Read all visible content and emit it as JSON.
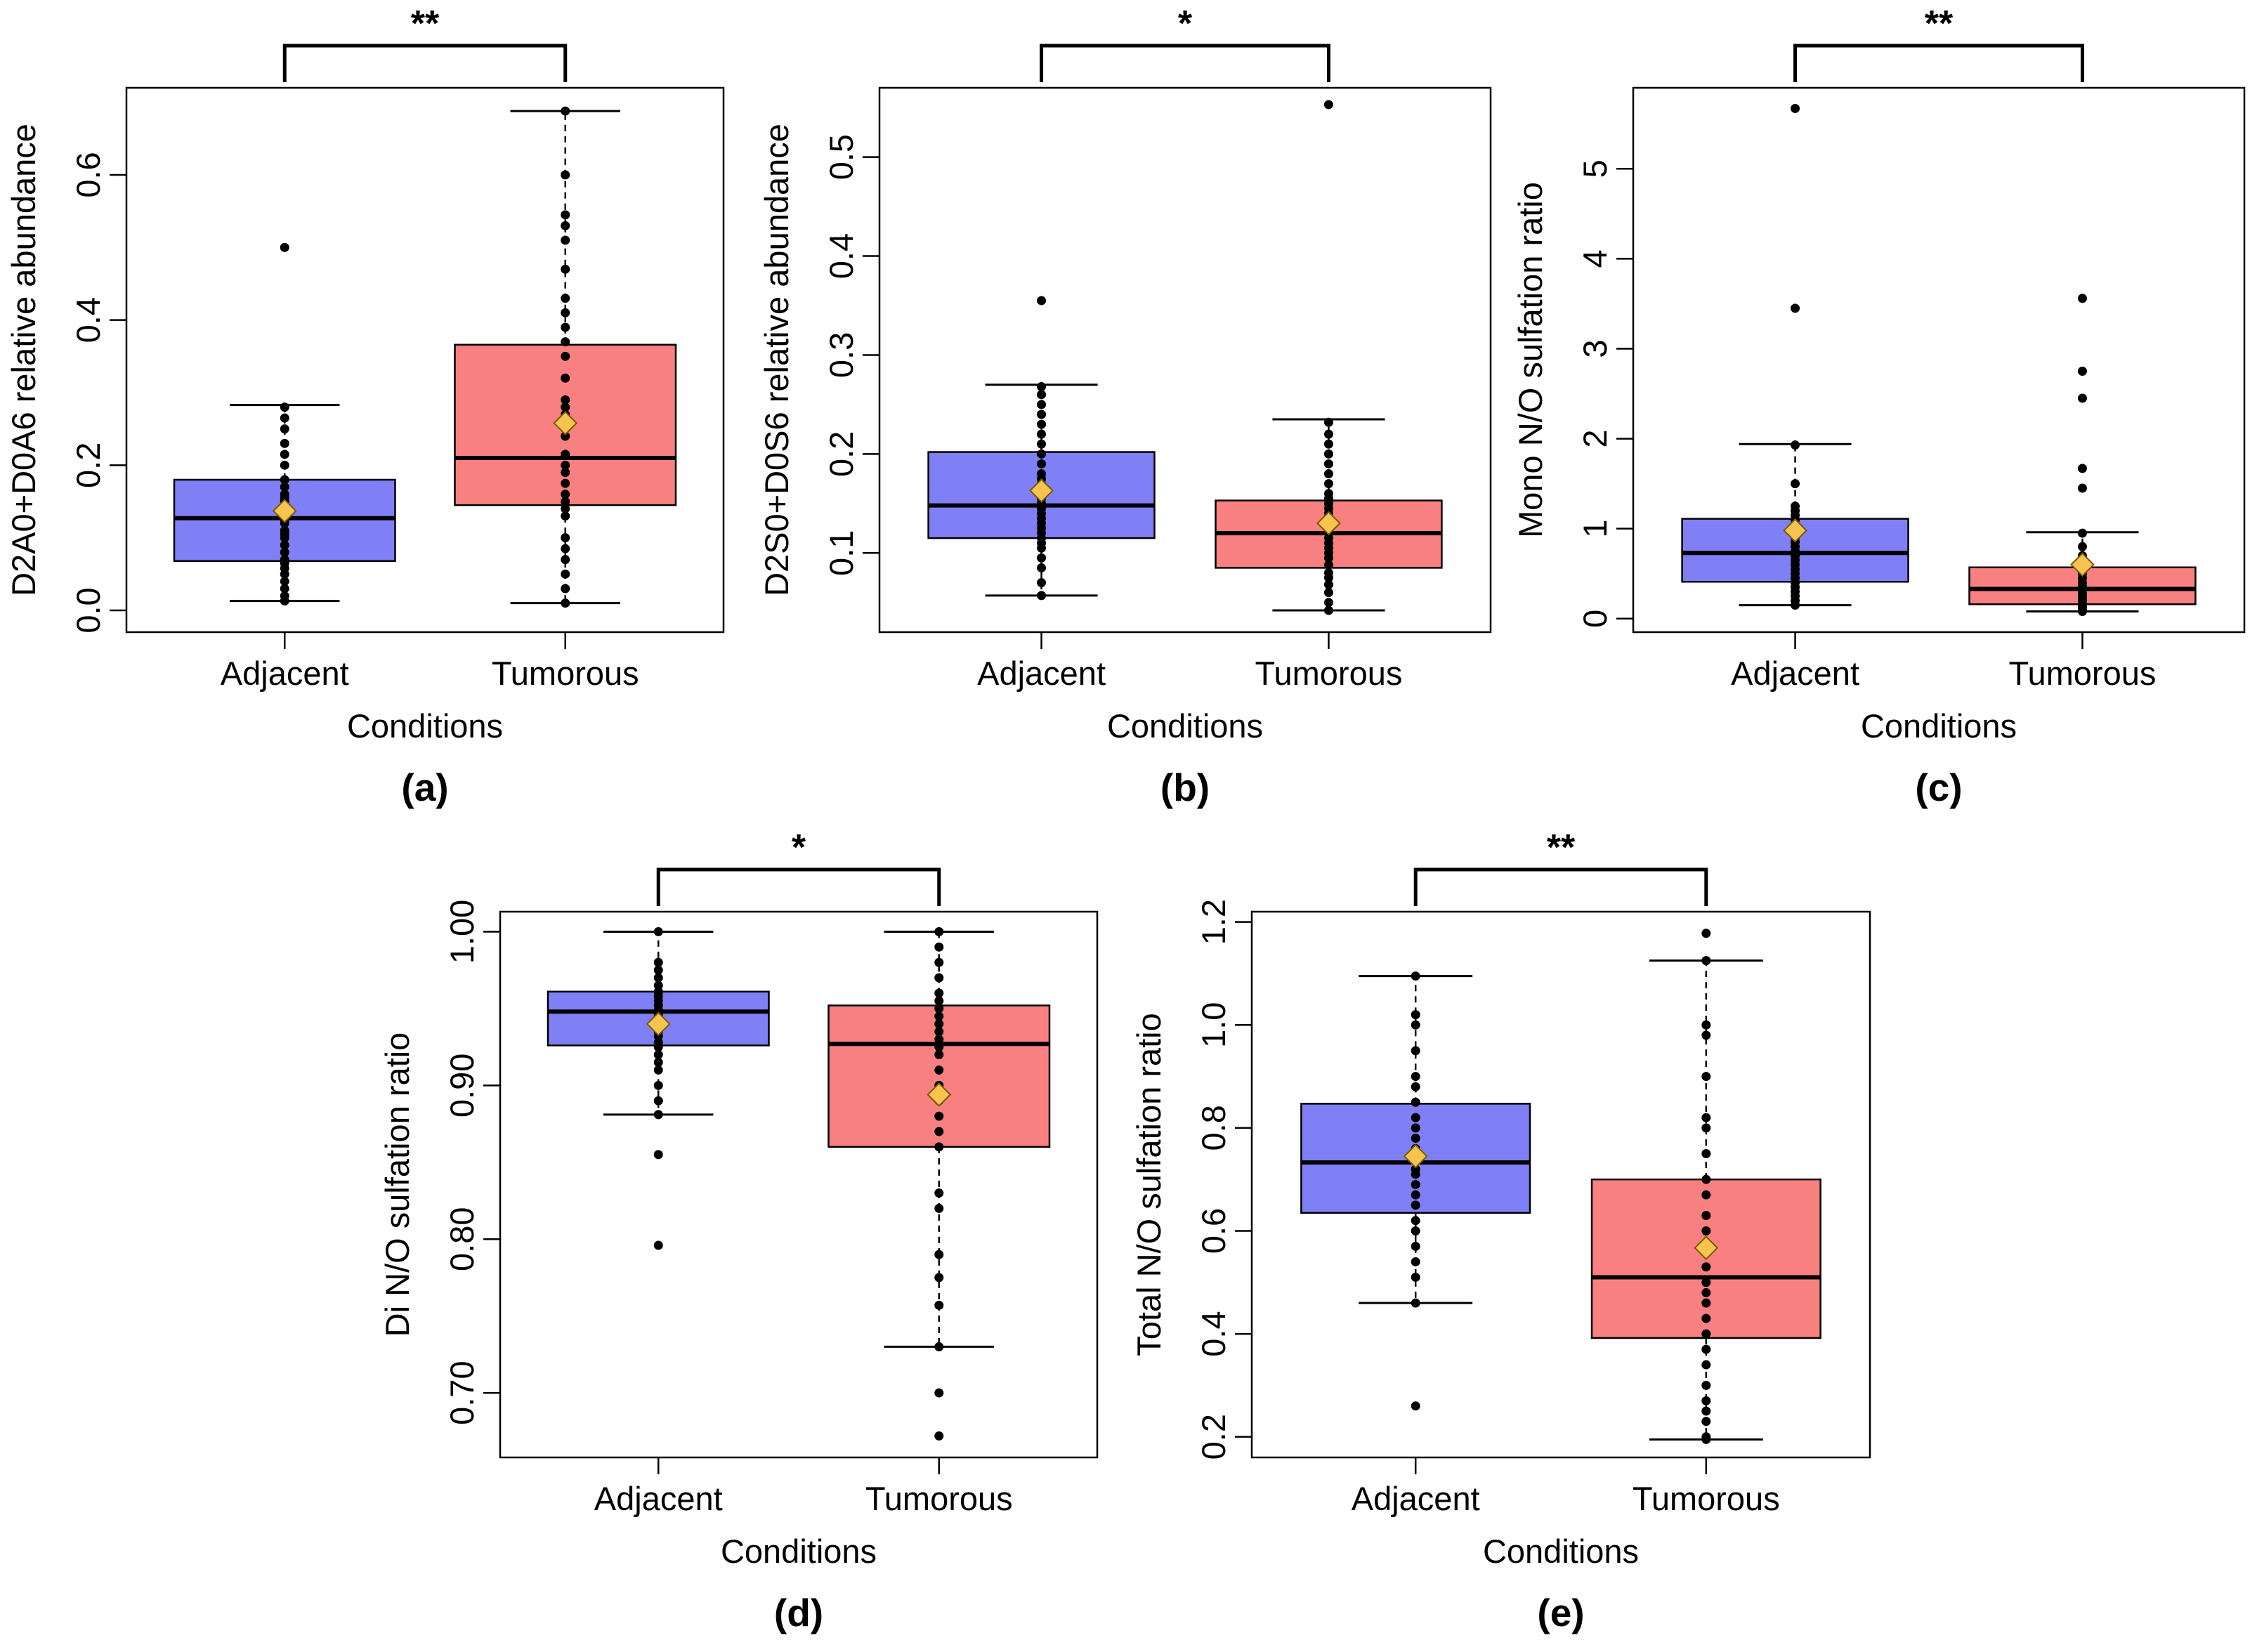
{
  "chart_data": [
    {
      "type": "box",
      "panel_label": "(a)",
      "significance": "**",
      "xlabel": "Conditions",
      "ylabel": "D2A0+D0A6 relative abundance",
      "ylim": [
        -0.03,
        0.72
      ],
      "yticks": [
        0.0,
        0.2,
        0.4,
        0.6
      ],
      "ytick_labels": [
        "0.0",
        "0.2",
        "0.4",
        "0.6"
      ],
      "categories": [
        "Adjacent",
        "Tumorous"
      ],
      "colors": [
        "#7f7ff6",
        "#f88080"
      ],
      "boxes": [
        {
          "category": "Adjacent",
          "whisker_low": 0.013,
          "q1": 0.068,
          "median": 0.127,
          "q3": 0.18,
          "whisker_high": 0.283,
          "mean": 0.137,
          "points": [
            0.013,
            0.02,
            0.03,
            0.04,
            0.05,
            0.058,
            0.065,
            0.07,
            0.08,
            0.09,
            0.1,
            0.105,
            0.11,
            0.12,
            0.125,
            0.13,
            0.135,
            0.14,
            0.145,
            0.15,
            0.155,
            0.16,
            0.17,
            0.18,
            0.2,
            0.215,
            0.23,
            0.25,
            0.265,
            0.28,
            0.5
          ]
        },
        {
          "category": "Tumorous",
          "whisker_low": 0.01,
          "q1": 0.145,
          "median": 0.21,
          "q3": 0.366,
          "whisker_high": 0.688,
          "mean": 0.258,
          "points": [
            0.01,
            0.03,
            0.05,
            0.07,
            0.085,
            0.1,
            0.13,
            0.14,
            0.15,
            0.16,
            0.175,
            0.19,
            0.2,
            0.215,
            0.24,
            0.26,
            0.27,
            0.28,
            0.29,
            0.32,
            0.35,
            0.37,
            0.39,
            0.41,
            0.43,
            0.47,
            0.51,
            0.53,
            0.545,
            0.6,
            0.688
          ]
        }
      ]
    },
    {
      "type": "box",
      "panel_label": "(b)",
      "significance": "*",
      "xlabel": "Conditions",
      "ylabel": "D2S0+D0S6 relative abundance",
      "ylim": [
        0.02,
        0.57
      ],
      "yticks": [
        0.1,
        0.2,
        0.3,
        0.4,
        0.5
      ],
      "ytick_labels": [
        "0.1",
        "0.2",
        "0.3",
        "0.4",
        "0.5"
      ],
      "categories": [
        "Adjacent",
        "Tumorous"
      ],
      "colors": [
        "#7f7ff6",
        "#f88080"
      ],
      "boxes": [
        {
          "category": "Adjacent",
          "whisker_low": 0.057,
          "q1": 0.115,
          "median": 0.148,
          "q3": 0.202,
          "whisker_high": 0.27,
          "mean": 0.163,
          "points": [
            0.057,
            0.07,
            0.085,
            0.095,
            0.105,
            0.11,
            0.115,
            0.12,
            0.125,
            0.13,
            0.135,
            0.14,
            0.145,
            0.15,
            0.155,
            0.16,
            0.165,
            0.17,
            0.175,
            0.18,
            0.19,
            0.2,
            0.21,
            0.22,
            0.23,
            0.24,
            0.25,
            0.26,
            0.268,
            0.355
          ]
        },
        {
          "category": "Tumorous",
          "whisker_low": 0.042,
          "q1": 0.085,
          "median": 0.12,
          "q3": 0.153,
          "whisker_high": 0.235,
          "mean": 0.13,
          "points": [
            0.042,
            0.05,
            0.06,
            0.068,
            0.075,
            0.08,
            0.088,
            0.095,
            0.1,
            0.105,
            0.11,
            0.115,
            0.12,
            0.125,
            0.13,
            0.135,
            0.14,
            0.145,
            0.15,
            0.155,
            0.16,
            0.17,
            0.18,
            0.19,
            0.2,
            0.21,
            0.22,
            0.232,
            0.553
          ]
        }
      ]
    },
    {
      "type": "box",
      "panel_label": "(c)",
      "significance": "**",
      "xlabel": "Conditions",
      "ylabel": "Mono N/O sulfation ratio",
      "ylim": [
        -0.15,
        5.9
      ],
      "yticks": [
        0,
        1,
        2,
        3,
        4,
        5
      ],
      "ytick_labels": [
        "0",
        "1",
        "2",
        "3",
        "4",
        "5"
      ],
      "categories": [
        "Adjacent",
        "Tumorous"
      ],
      "colors": [
        "#7f7ff6",
        "#f88080"
      ],
      "boxes": [
        {
          "category": "Adjacent",
          "whisker_low": 0.15,
          "q1": 0.41,
          "median": 0.73,
          "q3": 1.11,
          "whisker_high": 1.94,
          "mean": 0.98,
          "points": [
            0.15,
            0.2,
            0.25,
            0.3,
            0.35,
            0.4,
            0.45,
            0.5,
            0.55,
            0.6,
            0.65,
            0.7,
            0.75,
            0.8,
            0.85,
            0.9,
            0.95,
            1.0,
            1.05,
            1.1,
            1.15,
            1.2,
            1.25,
            1.5,
            1.93,
            3.45,
            5.67
          ]
        },
        {
          "category": "Tumorous",
          "whisker_low": 0.08,
          "q1": 0.16,
          "median": 0.33,
          "q3": 0.57,
          "whisker_high": 0.96,
          "mean": 0.6,
          "points": [
            0.08,
            0.1,
            0.13,
            0.16,
            0.2,
            0.24,
            0.28,
            0.32,
            0.36,
            0.4,
            0.45,
            0.5,
            0.55,
            0.6,
            0.7,
            0.8,
            0.95,
            1.45,
            1.67,
            2.45,
            2.75,
            3.56
          ]
        }
      ]
    },
    {
      "type": "box",
      "panel_label": "(d)",
      "significance": "*",
      "xlabel": "Conditions",
      "ylabel": "Di N/O sulfation ratio",
      "ylim": [
        0.658,
        1.013
      ],
      "yticks": [
        0.7,
        0.8,
        0.9,
        1.0
      ],
      "ytick_labels": [
        "0.70",
        "0.80",
        "0.90",
        "1.00"
      ],
      "categories": [
        "Adjacent",
        "Tumorous"
      ],
      "colors": [
        "#7f7ff6",
        "#f88080"
      ],
      "boxes": [
        {
          "category": "Adjacent",
          "whisker_low": 0.881,
          "q1": 0.926,
          "median": 0.948,
          "q3": 0.961,
          "whisker_high": 1.0,
          "mean": 0.94,
          "points": [
            0.796,
            0.855,
            0.881,
            0.89,
            0.9,
            0.91,
            0.915,
            0.92,
            0.925,
            0.928,
            0.932,
            0.935,
            0.938,
            0.94,
            0.943,
            0.946,
            0.949,
            0.952,
            0.955,
            0.958,
            0.961,
            0.965,
            0.97,
            0.975,
            0.98,
            1.0
          ]
        },
        {
          "category": "Tumorous",
          "whisker_low": 0.73,
          "q1": 0.86,
          "median": 0.927,
          "q3": 0.952,
          "whisker_high": 1.0,
          "mean": 0.894,
          "points": [
            0.672,
            0.7,
            0.73,
            0.757,
            0.775,
            0.79,
            0.82,
            0.83,
            0.86,
            0.87,
            0.88,
            0.89,
            0.9,
            0.91,
            0.92,
            0.925,
            0.93,
            0.935,
            0.94,
            0.945,
            0.95,
            0.955,
            0.96,
            0.97,
            0.98,
            0.99,
            1.0
          ]
        }
      ]
    },
    {
      "type": "box",
      "panel_label": "(e)",
      "significance": "**",
      "xlabel": "Conditions",
      "ylabel": "Total N/O sulfation ratio",
      "ylim": [
        0.16,
        1.22
      ],
      "yticks": [
        0.2,
        0.4,
        0.6,
        0.8,
        1.0,
        1.2
      ],
      "ytick_labels": [
        "0.2",
        "0.4",
        "0.6",
        "0.8",
        "1.0",
        "1.2"
      ],
      "categories": [
        "Adjacent",
        "Tumorous"
      ],
      "colors": [
        "#7f7ff6",
        "#f88080"
      ],
      "boxes": [
        {
          "category": "Adjacent",
          "whisker_low": 0.46,
          "q1": 0.635,
          "median": 0.733,
          "q3": 0.847,
          "whisker_high": 1.095,
          "mean": 0.745,
          "points": [
            0.26,
            0.46,
            0.51,
            0.54,
            0.57,
            0.6,
            0.62,
            0.65,
            0.67,
            0.69,
            0.71,
            0.72,
            0.74,
            0.76,
            0.78,
            0.8,
            0.82,
            0.85,
            0.88,
            0.9,
            0.95,
            1.0,
            1.02,
            1.095
          ]
        },
        {
          "category": "Tumorous",
          "whisker_low": 0.195,
          "q1": 0.392,
          "median": 0.51,
          "q3": 0.7,
          "whisker_high": 1.125,
          "mean": 0.567,
          "points": [
            0.195,
            0.2,
            0.23,
            0.25,
            0.27,
            0.3,
            0.34,
            0.37,
            0.4,
            0.43,
            0.46,
            0.48,
            0.5,
            0.53,
            0.56,
            0.6,
            0.63,
            0.67,
            0.7,
            0.75,
            0.8,
            0.82,
            0.9,
            0.98,
            1.0,
            1.125,
            1.178
          ]
        }
      ]
    }
  ]
}
